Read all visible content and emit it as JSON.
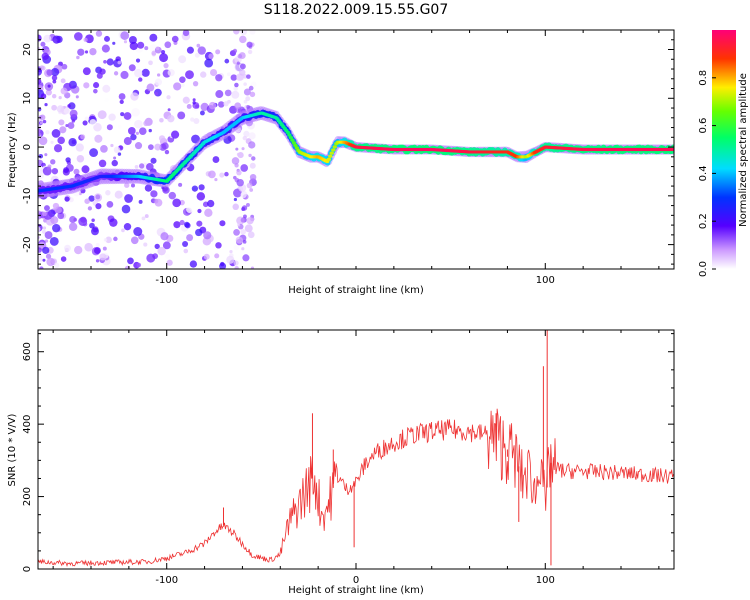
{
  "title": "S118.2022.009.15.55.G07",
  "chart_data": [
    {
      "type": "heatmap",
      "xlabel": "Height of straight line (km)",
      "ylabel": "Frequency (Hz)",
      "xlim": [
        -168,
        168
      ],
      "ylim": [
        -25,
        24
      ],
      "x_ticks": [
        "-100",
        "100"
      ],
      "y_ticks": [
        "20",
        "10",
        "0",
        "-10",
        "-20"
      ],
      "colorbar": {
        "label": "Normalized spectral amplitude",
        "range": [
          0,
          1
        ],
        "ticks": [
          "0.0",
          "0.2",
          "0.4",
          "0.6",
          "0.8"
        ]
      },
      "ridge": {
        "x": [
          -168,
          -150,
          -135,
          -115,
          -100,
          -90,
          -80,
          -70,
          -60,
          -50,
          -42,
          -36,
          -30,
          -24,
          -20,
          -15,
          -10,
          -6,
          0,
          20,
          40,
          60,
          70,
          80,
          85,
          90,
          95,
          100,
          120,
          140,
          168
        ],
        "freq": [
          -9,
          -8,
          -6,
          -6,
          -7,
          -3,
          1,
          3,
          6,
          7,
          6,
          3,
          -1,
          -2,
          -2,
          -3,
          1,
          1,
          0,
          -0.5,
          -0.5,
          -1,
          -1,
          -1,
          -2,
          -2,
          -1,
          0,
          -0.5,
          -0.5,
          -0.5
        ],
        "amplitude": [
          0.3,
          0.3,
          0.25,
          0.4,
          0.55,
          0.5,
          0.45,
          0.4,
          0.4,
          0.5,
          0.5,
          0.55,
          0.7,
          0.75,
          0.8,
          0.75,
          0.7,
          0.8,
          0.95,
          0.97,
          0.98,
          0.95,
          0.92,
          0.9,
          0.88,
          0.7,
          0.9,
          0.93,
          0.96,
          0.97,
          0.97
        ]
      }
    },
    {
      "type": "line",
      "xlabel": "Height of straight line (km)",
      "ylabel": "SNR (10 * V/V)",
      "xlim": [
        -168,
        168
      ],
      "ylim": [
        0,
        660
      ],
      "x_ticks": [
        "-100",
        "0",
        "100"
      ],
      "y_ticks": [
        "0",
        "200",
        "400",
        "600"
      ],
      "color": "#ee3333",
      "series": [
        {
          "x": [
            -168,
            -150,
            -130,
            -110,
            -100,
            -90,
            -80,
            -75,
            -70,
            -65,
            -60,
            -55,
            -50,
            -45,
            -40,
            -38,
            -35,
            -30,
            -25,
            -22,
            -20,
            -18,
            -15,
            -10,
            -5,
            0,
            5,
            10,
            20,
            30,
            40,
            50,
            60,
            70,
            75,
            80,
            85,
            88,
            92,
            95,
            98,
            100,
            102,
            105,
            110,
            120,
            140,
            168
          ],
          "y": [
            20,
            15,
            18,
            20,
            30,
            45,
            70,
            100,
            120,
            100,
            70,
            40,
            30,
            25,
            40,
            80,
            130,
            180,
            230,
            260,
            200,
            150,
            170,
            260,
            220,
            240,
            290,
            320,
            350,
            370,
            380,
            385,
            380,
            370,
            350,
            330,
            300,
            250,
            270,
            200,
            350,
            150,
            300,
            280,
            270,
            270,
            265,
            255
          ]
        }
      ],
      "spikes": [
        {
          "x": -70,
          "y": 170
        },
        {
          "x": -23,
          "y": 430
        },
        {
          "x": -12,
          "y": 330
        },
        {
          "x": -1,
          "y": 60
        },
        {
          "x": 74,
          "y": 430
        },
        {
          "x": 80,
          "y": 310
        },
        {
          "x": 86,
          "y": 130
        },
        {
          "x": 99,
          "y": 560
        },
        {
          "x": 101,
          "y": 660
        },
        {
          "x": 103,
          "y": 10
        }
      ]
    }
  ]
}
